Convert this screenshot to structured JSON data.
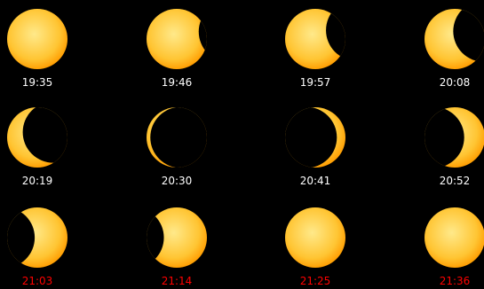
{
  "frames": [
    {
      "time": "19:35",
      "label_color": "#ffffff",
      "coverage": 0.0,
      "moon_angle_deg": 0
    },
    {
      "time": "19:46",
      "label_color": "#ffffff",
      "coverage": 0.12,
      "moon_angle_deg": -8
    },
    {
      "time": "19:57",
      "label_color": "#ffffff",
      "coverage": 0.3,
      "moon_angle_deg": -12
    },
    {
      "time": "20:08",
      "label_color": "#ffffff",
      "coverage": 0.5,
      "moon_angle_deg": -15
    },
    {
      "time": "20:19",
      "label_color": "#ffffff",
      "coverage": 0.72,
      "moon_angle_deg": -18
    },
    {
      "time": "20:30",
      "label_color": "#ffffff",
      "coverage": 0.93,
      "moon_angle_deg": 0
    },
    {
      "time": "20:41",
      "label_color": "#ffffff",
      "coverage": 0.85,
      "moon_angle_deg": 180
    },
    {
      "time": "20:52",
      "label_color": "#ffffff",
      "coverage": 0.65,
      "moon_angle_deg": 180
    },
    {
      "time": "21:03",
      "label_color": "#ff0000",
      "coverage": 0.45,
      "moon_angle_deg": 180
    },
    {
      "time": "21:14",
      "label_color": "#ff0000",
      "coverage": 0.28,
      "moon_angle_deg": 180
    },
    {
      "time": "21:25",
      "label_color": "#ff0000",
      "coverage": 0.0,
      "moon_angle_deg": 0
    },
    {
      "time": "21:36",
      "label_color": "#ff0000",
      "coverage": 0.0,
      "moon_angle_deg": 0
    }
  ],
  "colors": {
    "background": "#000000",
    "sun_core": "#ffe98a",
    "sun_mid": "#ffc533",
    "sun_edge": "#ff9c00"
  }
}
